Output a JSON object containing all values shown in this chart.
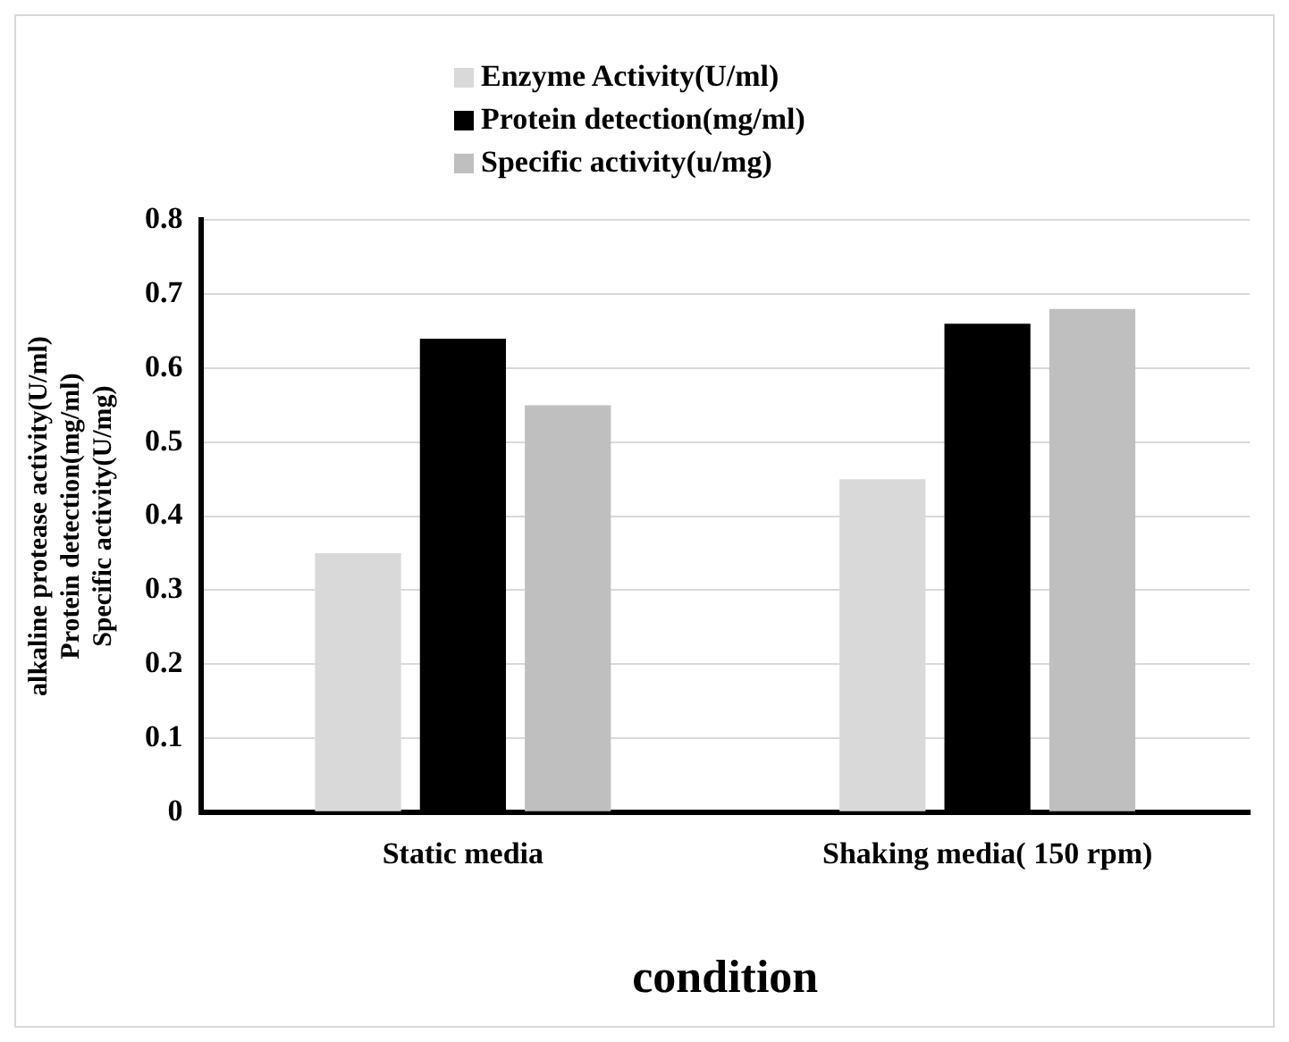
{
  "chart_data": {
    "type": "bar",
    "xlabel": "condition",
    "ylabel": "alkaline protease activity(U/ml)\nProtein detection(mg/ml)\nSpecific activity(U/mg)",
    "categories": [
      "Static media",
      "Shaking media( 150 rpm)"
    ],
    "series": [
      {
        "name": "Enzyme Activity(U/ml)",
        "color": "#d9d9d9",
        "values": [
          0.35,
          0.45
        ]
      },
      {
        "name": "Protein detection(mg/ml)",
        "color": "#000000",
        "values": [
          0.64,
          0.66
        ]
      },
      {
        "name": "Specific activity(u/mg)",
        "color": "#bfbfbf",
        "values": [
          0.55,
          0.68
        ]
      }
    ],
    "ylim": [
      0,
      0.8
    ],
    "yticks": [
      0,
      0.1,
      0.2,
      0.3,
      0.4,
      0.5,
      0.6,
      0.7,
      0.8
    ],
    "grid": "y",
    "legend": "top"
  }
}
